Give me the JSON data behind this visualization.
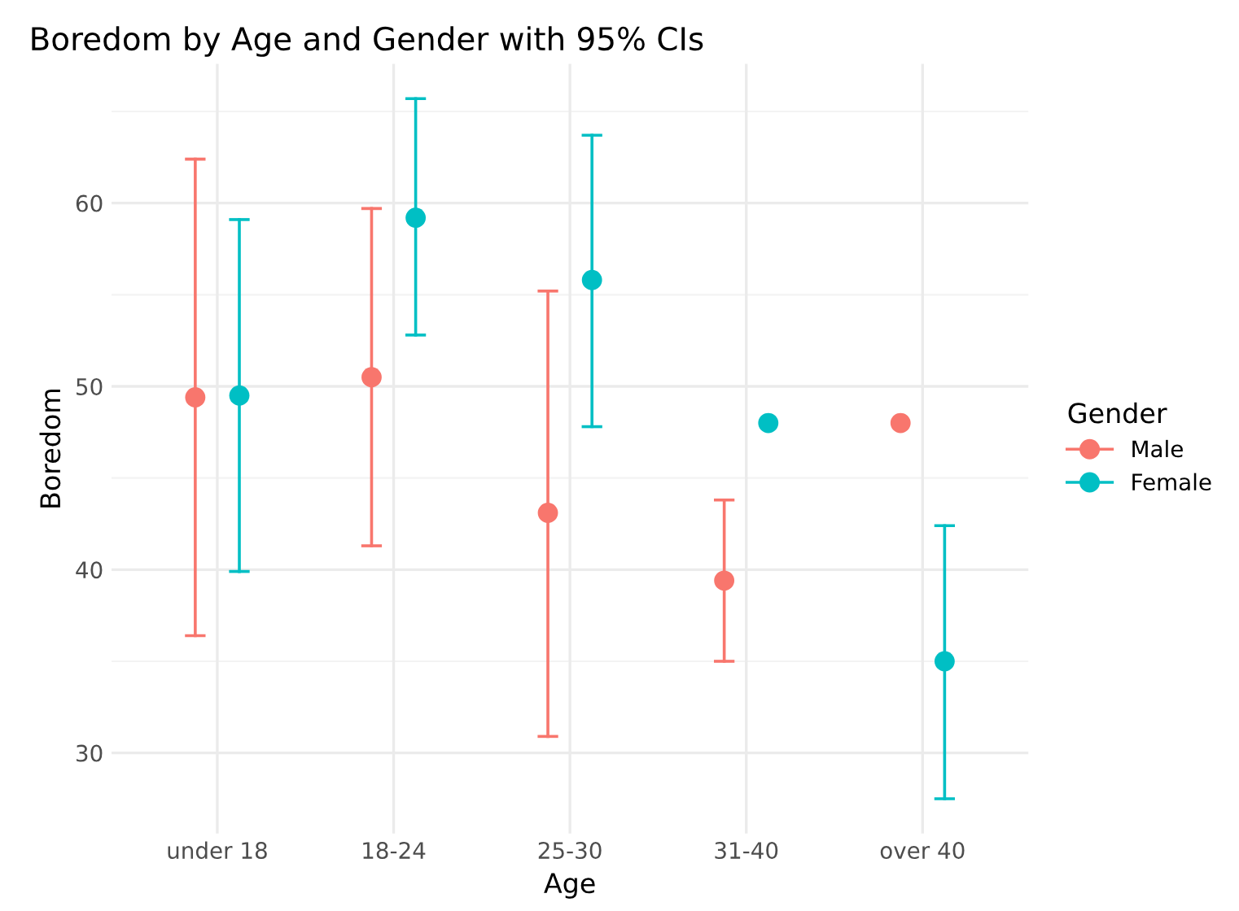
{
  "chart_data": {
    "type": "scatter",
    "title": "Boredom by Age and Gender with 95% CIs",
    "xlabel": "Age",
    "ylabel": "Boredom",
    "legend_title": "Gender",
    "categories": [
      "under 18",
      "18-24",
      "25-30",
      "31-40",
      "over 40"
    ],
    "series": [
      {
        "name": "Male",
        "color": "#f8766d",
        "values": [
          49.4,
          50.5,
          43.1,
          39.4,
          48.0
        ],
        "errors": [
          [
            36.4,
            62.4
          ],
          [
            41.3,
            59.7
          ],
          [
            30.9,
            55.2
          ],
          [
            35.0,
            43.8
          ],
          null
        ]
      },
      {
        "name": "Female",
        "color": "#00bfc4",
        "values": [
          49.5,
          59.2,
          55.8,
          48.0,
          35.0
        ],
        "errors": [
          [
            39.9,
            59.1
          ],
          [
            52.8,
            65.7
          ],
          [
            47.8,
            63.7
          ],
          null,
          [
            27.5,
            42.4
          ]
        ]
      }
    ],
    "ylim": [
      25.6,
      67.6
    ],
    "yticks": [
      30,
      40,
      50,
      60
    ],
    "grid": true,
    "legend": "right",
    "marker": "circle"
  }
}
